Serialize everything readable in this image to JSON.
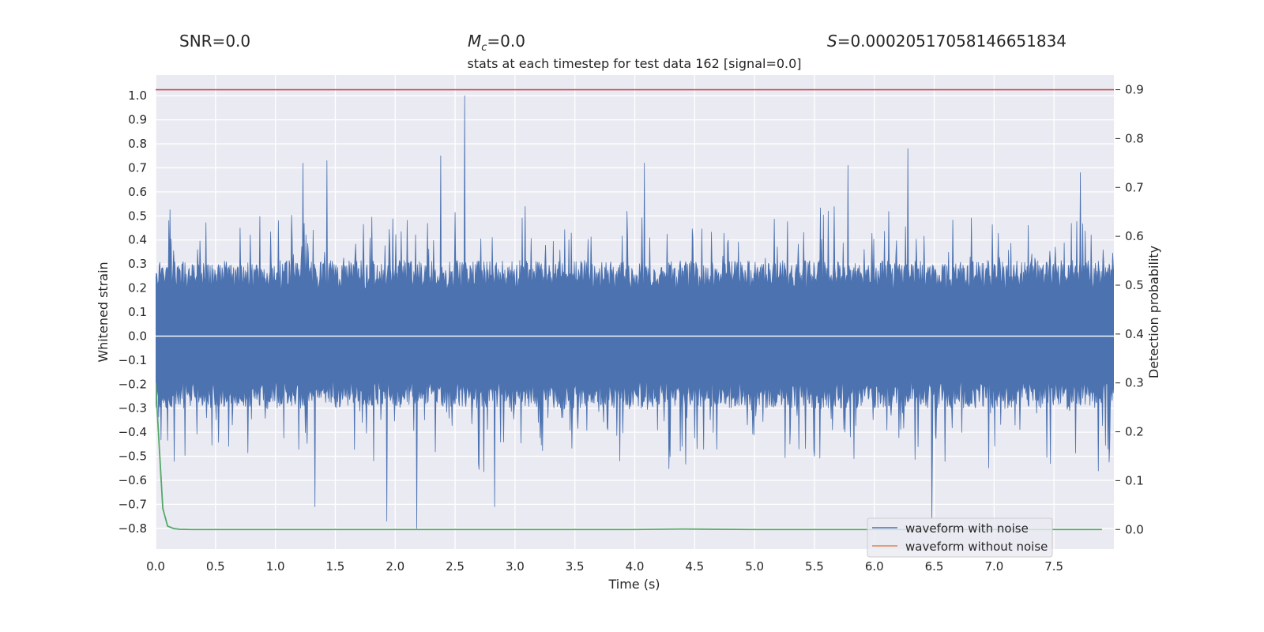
{
  "stats": {
    "snr_label": "SNR=",
    "snr_value": "0.0",
    "mc_symbol": "M",
    "mc_sub": "c",
    "mc_value": "=0.0",
    "s_symbol": "S",
    "s_value": "=0.00020517058146651834"
  },
  "colors": {
    "background": "#eaeaf2",
    "grid": "#ffffff",
    "waveform_with_noise": "#4c72b0",
    "waveform_without_noise": "#dd8452",
    "detection_probability": "#55a868",
    "threshold": "#c44e52"
  },
  "chart_data": {
    "type": "line",
    "title": "stats at each timestep for test data 162 [signal=0.0]",
    "xlabel": "Time (s)",
    "ylabel": "Whitened strain",
    "y2label": "Detection probability",
    "xlim": [
      0,
      8.0
    ],
    "ylim": [
      -0.886,
      1.086
    ],
    "y2lim": [
      -0.04,
      0.93
    ],
    "xticks": [
      0.0,
      0.5,
      1.0,
      1.5,
      2.0,
      2.5,
      3.0,
      3.5,
      4.0,
      4.5,
      5.0,
      5.5,
      6.0,
      6.5,
      7.0,
      7.5
    ],
    "xtick_labels": [
      "0.0",
      "0.5",
      "1.0",
      "1.5",
      "2.0",
      "2.5",
      "3.0",
      "3.5",
      "4.0",
      "4.5",
      "5.0",
      "5.5",
      "6.0",
      "6.5",
      "7.0",
      "7.5"
    ],
    "yticks": [
      1.0,
      0.9,
      0.8,
      0.7,
      0.6,
      0.5,
      0.4,
      0.3,
      0.2,
      0.1,
      0.0,
      -0.1,
      -0.2,
      -0.3,
      -0.4,
      -0.5,
      -0.6,
      -0.7,
      -0.8
    ],
    "ytick_labels": [
      "1.0",
      "0.9",
      "0.8",
      "0.7",
      "0.6",
      "0.5",
      "0.4",
      "0.3",
      "0.2",
      "0.1",
      "0.0",
      "−0.1",
      "−0.2",
      "−0.3",
      "−0.4",
      "−0.5",
      "−0.6",
      "−0.7",
      "−0.8"
    ],
    "y2ticks": [
      0.9,
      0.8,
      0.7,
      0.6,
      0.5,
      0.4,
      0.3,
      0.2,
      0.1,
      0.0
    ],
    "y2tick_labels": [
      "0.9",
      "0.8",
      "0.7",
      "0.6",
      "0.5",
      "0.4",
      "0.3",
      "0.2",
      "0.1",
      "0.0"
    ],
    "grid": true,
    "legend_position": "bottom-right",
    "series": [
      {
        "name": "waveform with noise",
        "axis": "left",
        "kind": "noise-envelope",
        "duration_s": 8.0,
        "typical_amplitude": [
          -0.25,
          0.35
        ],
        "peaks": [
          {
            "t": 2.58,
            "v": 1.0
          },
          {
            "t": 6.28,
            "v": 0.78
          },
          {
            "t": 2.38,
            "v": 0.75
          },
          {
            "t": 1.43,
            "v": 0.73
          },
          {
            "t": 1.23,
            "v": 0.72
          },
          {
            "t": 4.08,
            "v": 0.72
          },
          {
            "t": 5.78,
            "v": 0.71
          },
          {
            "t": 7.72,
            "v": 0.68
          },
          {
            "t": 2.18,
            "v": -0.8
          },
          {
            "t": 6.48,
            "v": -0.76
          },
          {
            "t": 1.93,
            "v": -0.77
          },
          {
            "t": 1.33,
            "v": -0.71
          },
          {
            "t": 2.83,
            "v": -0.71
          }
        ]
      },
      {
        "name": "waveform without noise",
        "axis": "left",
        "x": [
          0.0,
          8.0
        ],
        "y": [
          0.0,
          0.0
        ]
      },
      {
        "name": "detection probability",
        "axis": "right",
        "x": [
          0.0,
          0.03,
          0.06,
          0.1,
          0.15,
          0.2,
          0.3,
          0.5,
          1.0,
          2.0,
          3.0,
          4.0,
          4.4,
          5.0,
          6.0,
          7.0,
          7.9
        ],
        "y": [
          0.3,
          0.17,
          0.043,
          0.007,
          0.002,
          0.0005,
          0.0,
          0.0,
          0.0,
          0.0,
          0.0,
          0.0,
          0.001,
          0.0,
          0.0,
          0.0,
          0.0
        ]
      },
      {
        "name": "threshold",
        "axis": "right",
        "x": [
          0.0,
          8.0
        ],
        "y": [
          0.9,
          0.9
        ]
      }
    ],
    "legend": [
      "waveform with noise",
      "waveform without noise"
    ]
  }
}
